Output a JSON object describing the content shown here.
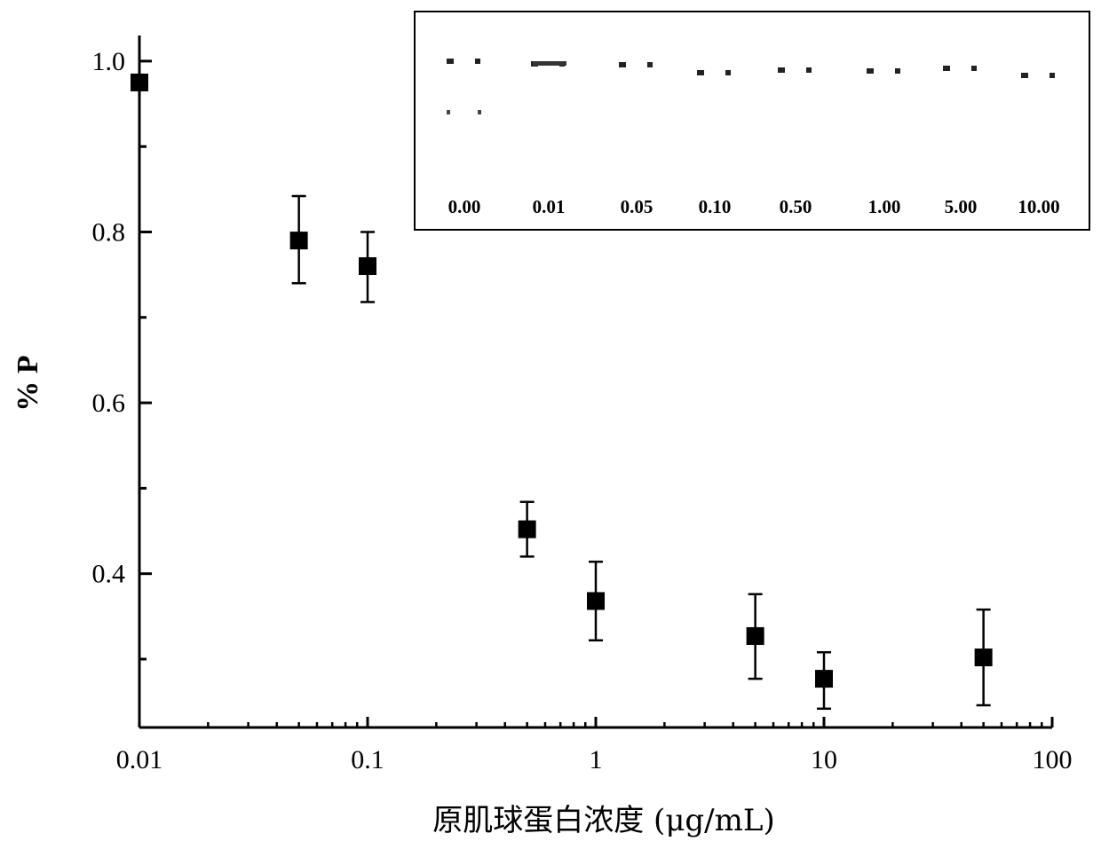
{
  "chart_data": {
    "type": "scatter",
    "xscale": "log",
    "xlim": [
      0.01,
      100
    ],
    "ylim": [
      0.22,
      1.03
    ],
    "xlabel": "原肌球蛋白浓度 (μg/mL)",
    "ylabel": "% P",
    "x_ticks": [
      {
        "value": 0.01,
        "label": "0.01"
      },
      {
        "value": 0.1,
        "label": "0.1"
      },
      {
        "value": 1,
        "label": "1"
      },
      {
        "value": 10,
        "label": "10"
      },
      {
        "value": 100,
        "label": "100"
      }
    ],
    "y_ticks": [
      {
        "value": 0.4,
        "label": "0.4"
      },
      {
        "value": 0.6,
        "label": "0.6"
      },
      {
        "value": 0.8,
        "label": "0.8"
      },
      {
        "value": 1.0,
        "label": "1.0"
      }
    ],
    "points": [
      {
        "x": 0.01,
        "y": 0.975,
        "err_low": 0.0,
        "err_high": 0.0
      },
      {
        "x": 0.05,
        "y": 0.79,
        "err_low": 0.05,
        "err_high": 0.052
      },
      {
        "x": 0.1,
        "y": 0.76,
        "err_low": 0.042,
        "err_high": 0.04
      },
      {
        "x": 0.5,
        "y": 0.452,
        "err_low": 0.032,
        "err_high": 0.032
      },
      {
        "x": 1,
        "y": 0.368,
        "err_low": 0.046,
        "err_high": 0.046
      },
      {
        "x": 5,
        "y": 0.327,
        "err_low": 0.05,
        "err_high": 0.049
      },
      {
        "x": 10,
        "y": 0.277,
        "err_low": 0.035,
        "err_high": 0.031
      },
      {
        "x": 50,
        "y": 0.302,
        "err_low": 0.056,
        "err_high": 0.056
      }
    ],
    "inset": {
      "lanes": [
        "0.00",
        "0.01",
        "0.05",
        "0.10",
        "0.50",
        "1.00",
        "5.00",
        "10.00"
      ]
    }
  }
}
